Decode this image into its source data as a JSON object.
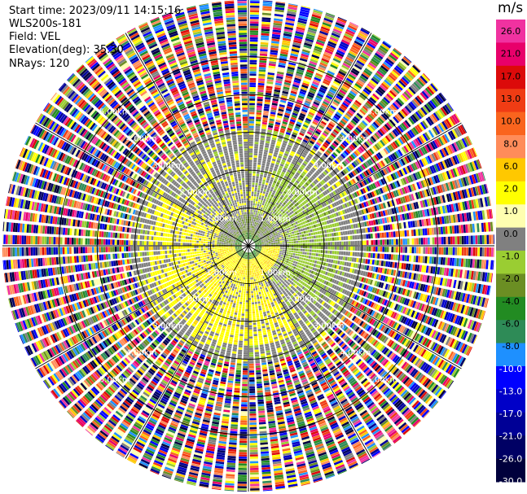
{
  "header": {
    "start_time": "Start time: 2023/09/11 14:15:16",
    "instrument": "WLS200s-181",
    "field": "Field: VEL",
    "elevation": "Elevation(deg): 35.30",
    "nrays": "NRays: 120"
  },
  "chart_data": {
    "type": "heatmap",
    "projection": "polar PPI",
    "field": "VEL",
    "n_rays": 120,
    "elevation_deg": 35.3,
    "range_rings_km": [
      1.0,
      2.0,
      3.0,
      4.0,
      5.0
    ],
    "range_ring_labels": [
      "1.00km",
      "2.00km",
      "3.00km",
      "4.00km",
      "5.00km"
    ],
    "max_range_km": 6.5,
    "colorbar": {
      "unit": "m/s",
      "tick_labels": [
        "26.0",
        "21.0",
        "17.0",
        "13.0",
        "10.0",
        "8.0",
        "6.0",
        "2.0",
        "1.0",
        "0.0",
        "-1.0",
        "-2.0",
        "-4.0",
        "-6.0",
        "-8.0",
        "-10.0",
        "-13.0",
        "-17.0",
        "-21.0",
        "-26.0",
        "-30.0"
      ],
      "colors": [
        "#f032a0",
        "#e8006a",
        "#dc0a0a",
        "#f03c14",
        "#fa641e",
        "#ff8c5a",
        "#ffc800",
        "#ffff00",
        "#ffffb0",
        "#808080",
        "#9acd32",
        "#6b8e23",
        "#228b22",
        "#2e8b57",
        "#1e90ff",
        "#0000ff",
        "#0000c8",
        "#000096",
        "#000064",
        "#00003c"
      ]
    },
    "pattern": {
      "inner_clear_km": 3.1,
      "near_field": "low velocities (-2 to 2 m/s): yellow toward south/west, light green toward north/east, gray elsewhere",
      "far_field": "noisy full-range velocities beyond ~3 km"
    }
  }
}
